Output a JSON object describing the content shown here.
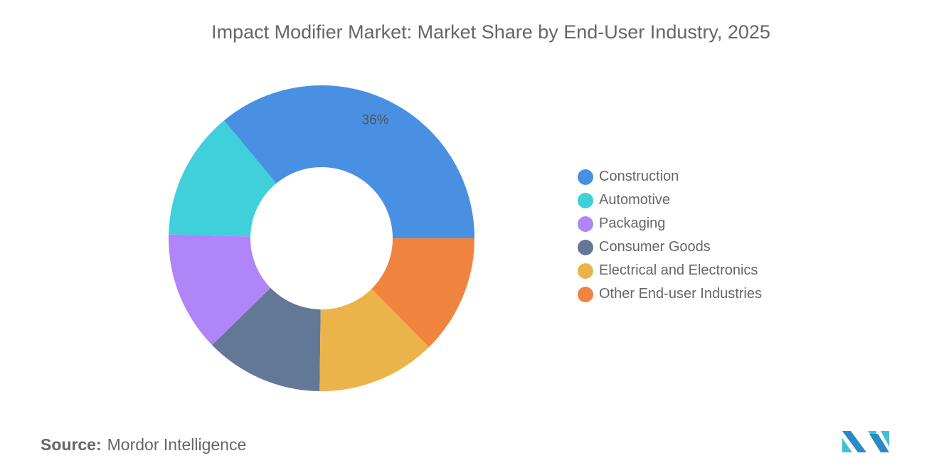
{
  "title": "Impact Modifier Market: Market Share by End-User Industry, 2025",
  "source_label": "Source:",
  "source_value": "Mordor Intelligence",
  "logo_text": "Mordor Intelligence",
  "chart_data": {
    "type": "pie",
    "donut": true,
    "title": "Impact Modifier Market: Market Share by End-User Industry, 2025",
    "legend_position": "right",
    "slices": [
      {
        "name": "Construction",
        "value": 36,
        "color": "#4A90E2",
        "label": "36%"
      },
      {
        "name": "Automotive",
        "value": 13.6,
        "color": "#3FD0DB",
        "label": ""
      },
      {
        "name": "Packaging",
        "value": 12.7,
        "color": "#B085F7",
        "label": ""
      },
      {
        "name": "Consumer Goods",
        "value": 12.5,
        "color": "#637896",
        "label": ""
      },
      {
        "name": "Electrical and Electronics",
        "value": 12.6,
        "color": "#EBB44B",
        "label": ""
      },
      {
        "name": "Other End-user Industries",
        "value": 12.6,
        "color": "#F0843F",
        "label": ""
      }
    ]
  }
}
